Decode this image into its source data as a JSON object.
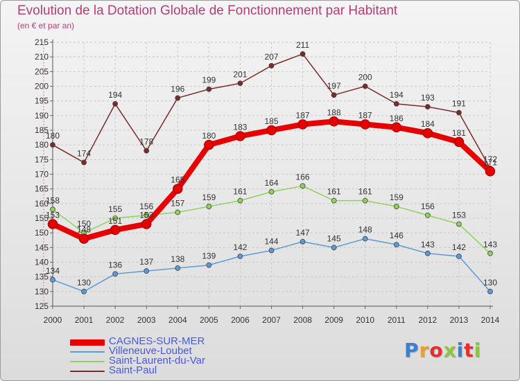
{
  "header": {
    "title": "Evolution de la Dotation Globale de Fonctionnement par Habitant",
    "subtitle": "(en € et par an)"
  },
  "logo": {
    "text": "Proxiti",
    "colors": [
      "#3a7fd0",
      "#f0a020",
      "#e03030",
      "#8cc63f",
      "#3a7fd0",
      "#e03030",
      "#8cc63f"
    ]
  },
  "chart_data": {
    "type": "line",
    "x": [
      2000,
      2001,
      2002,
      2003,
      2004,
      2005,
      2006,
      2007,
      2008,
      2009,
      2010,
      2011,
      2012,
      2013,
      2014
    ],
    "ylim": [
      125,
      215
    ],
    "ytick_step": 5,
    "grid": true,
    "legend_position": "bottom-left",
    "series": [
      {
        "name": "Saint-Paul",
        "color": "#7a2a2a",
        "values": [
          180,
          174,
          194,
          178,
          196,
          199,
          201,
          207,
          211,
          197,
          200,
          194,
          193,
          191,
          172
        ]
      },
      {
        "name": "Saint-Laurent-du-Var",
        "color": "#8fd25a",
        "values": [
          158,
          150,
          155,
          156,
          157,
          159,
          161,
          164,
          166,
          161,
          161,
          159,
          156,
          153,
          143
        ]
      },
      {
        "name": "Villeneuve-Loubet",
        "color": "#5a9ad6",
        "values": [
          134,
          130,
          136,
          137,
          138,
          139,
          142,
          144,
          147,
          145,
          148,
          146,
          143,
          142,
          130
        ]
      },
      {
        "name": "CAGNES-SUR-MER",
        "color": "#e60000",
        "values": [
          153,
          148,
          151,
          153,
          165,
          180,
          183,
          185,
          187,
          188,
          187,
          186,
          184,
          181,
          171
        ]
      }
    ]
  },
  "legend": [
    {
      "label": "CAGNES-SUR-MER",
      "color": "#e60000",
      "thickness": 9
    },
    {
      "label": "Villeneuve-Loubet",
      "color": "#5a9ad6",
      "thickness": 2
    },
    {
      "label": "Saint-Laurent-du-Var",
      "color": "#8fd25a",
      "thickness": 2
    },
    {
      "label": "Saint-Paul",
      "color": "#7a2a2a",
      "thickness": 2
    }
  ]
}
